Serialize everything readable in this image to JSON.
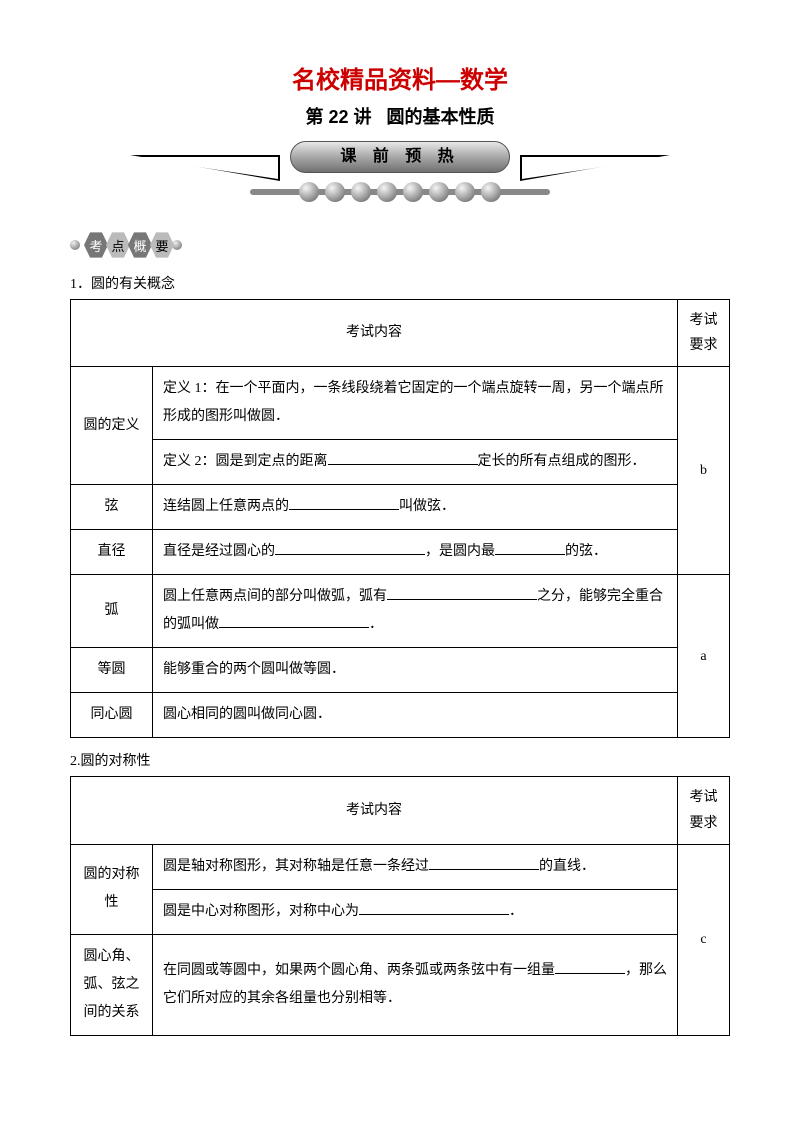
{
  "header": {
    "main_title": "名校精品资料—数学",
    "sub_title_prefix": "第 22 讲",
    "sub_title_text": "圆的基本性质",
    "banner_text": "课 前 预 热",
    "hex_label": [
      "考",
      "点",
      "概",
      "要"
    ]
  },
  "section1": {
    "number": "1．圆的有关概念",
    "header_content": "考试内容",
    "header_req": "考试要求",
    "rows": [
      {
        "name": "圆的定义",
        "cells": [
          "定义 1：在一个平面内，一条线段绕着它固定的一个端点旋转一周，另一个端点所形成的图形叫做圆．",
          "定义 2：圆是到定点的距离________定长的所有点组成的图形．"
        ]
      },
      {
        "name": "弦",
        "cells": [
          "连结圆上任意两点的________叫做弦．"
        ]
      },
      {
        "name": "直径",
        "cells": [
          "直径是经过圆心的________，是圆内最________的弦．"
        ]
      },
      {
        "name": "弧",
        "cells": [
          "圆上任意两点间的部分叫做弧，弧有________之分，能够完全重合的弧叫做________．"
        ]
      },
      {
        "name": "等圆",
        "cells": [
          "能够重合的两个圆叫做等圆．"
        ]
      },
      {
        "name": "同心圆",
        "cells": [
          "圆心相同的圆叫做同心圆．"
        ]
      }
    ],
    "req_groups": [
      {
        "label": "b",
        "span": 4
      },
      {
        "label": "a",
        "span": 3
      }
    ]
  },
  "section2": {
    "number": "2.圆的对称性",
    "header_content": "考试内容",
    "header_req": "考试要求",
    "rows": [
      {
        "name": "圆的对称性",
        "cells": [
          "圆是轴对称图形，其对称轴是任意一条经过________的直线．",
          "圆是中心对称图形，对称中心为________．"
        ]
      },
      {
        "name": "圆心角、弧、弦之间的关系",
        "cells": [
          "在同圆或等圆中，如果两个圆心角、两条弧或两条弦中有一组量________，那么它们所对应的其余各组量也分别相等．"
        ]
      }
    ],
    "req_label": "c"
  },
  "colors": {
    "title": "#cc0000",
    "text": "#000000",
    "border": "#000000",
    "background": "#ffffff"
  }
}
